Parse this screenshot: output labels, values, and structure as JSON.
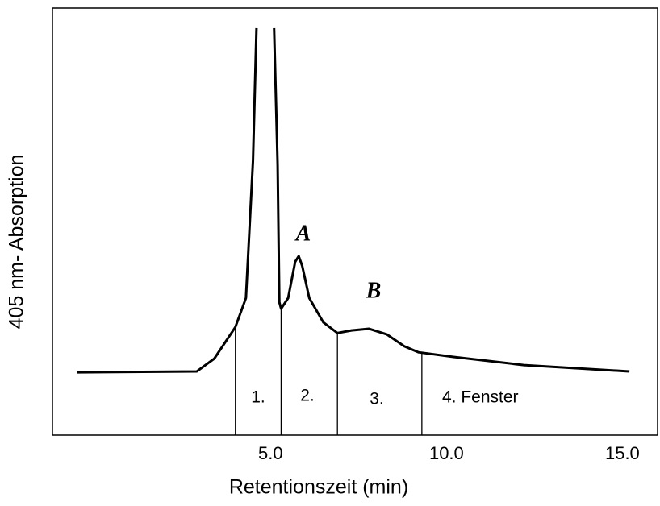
{
  "chart_data": {
    "type": "line",
    "xlabel": "Retentionszeit (min)",
    "ylabel": "405 nm- Absorption",
    "xlim": [
      -1.2,
      16
    ],
    "ylim": [
      0,
      100
    ],
    "xticks": [
      {
        "value": 5,
        "label": "5.0"
      },
      {
        "value": 10,
        "label": "10.0"
      },
      {
        "value": 15,
        "label": "15.0"
      }
    ],
    "x": [
      -0.5,
      2.9,
      3.4,
      4.0,
      4.3,
      4.5,
      4.6,
      4.85,
      5.1,
      5.2,
      5.25,
      5.3,
      5.5,
      5.7,
      5.8,
      5.9,
      6.1,
      6.5,
      6.9,
      7.3,
      7.8,
      8.3,
      8.8,
      9.2,
      10.2,
      12.2,
      15.2
    ],
    "series": [
      {
        "color": "#000000",
        "values": [
          14.7,
          14.9,
          17.9,
          25.3,
          32.1,
          64.2,
          95.3,
          null,
          95.3,
          63.4,
          31.1,
          29.6,
          32.1,
          40.6,
          41.9,
          39.6,
          32.1,
          26.4,
          23.9,
          24.5,
          24.9,
          23.6,
          20.8,
          19.4,
          18.3,
          16.4,
          14.9
        ]
      }
    ],
    "windows": [
      4.0,
      5.3,
      6.9,
      9.3
    ],
    "annotations": {
      "window_labels": [
        "1.",
        "2.",
        "3.",
        "4. Fenster"
      ],
      "peaks": [
        "A",
        "B"
      ]
    }
  }
}
